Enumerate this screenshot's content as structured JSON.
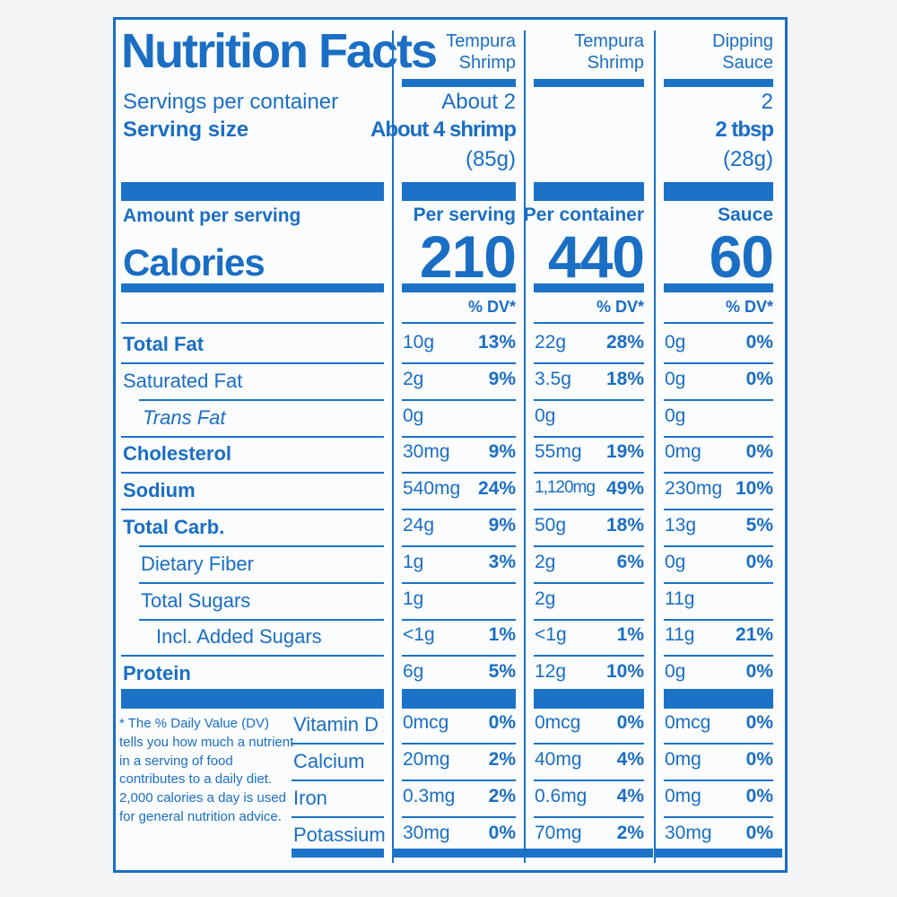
{
  "header": {
    "title": "Nutrition Facts",
    "servings_label": "Servings per container",
    "serving_size_label": "Serving size",
    "amount_label": "Amount per serving",
    "calories_label": "Calories"
  },
  "columns": [
    {
      "heading": "Tempura Shrimp",
      "servings": "About 2",
      "serving_size": "About 4 shrimp",
      "serving_grams": "(85g)",
      "amount_label": "Per serving",
      "calories": 210,
      "dv_label": "% DV*"
    },
    {
      "heading": "Tempura Shrimp",
      "amount_label": "Per container",
      "calories": 440,
      "dv_label": "% DV*"
    },
    {
      "heading": "Dipping Sauce",
      "servings": "2",
      "serving_size": "2 tbsp",
      "serving_grams": "(28g)",
      "amount_label": "Sauce",
      "calories": 60,
      "dv_label": "% DV*"
    }
  ],
  "nutrients": [
    {
      "name": "Total Fat",
      "values": [
        {
          "amount": "10g",
          "dv": "13%"
        },
        {
          "amount": "22g",
          "dv": "28%"
        },
        {
          "amount": "0g",
          "dv": "0%"
        }
      ]
    },
    {
      "name": "Saturated Fat",
      "values": [
        {
          "amount": "2g",
          "dv": "9%"
        },
        {
          "amount": "3.5g",
          "dv": "18%"
        },
        {
          "amount": "0g",
          "dv": "0%"
        }
      ]
    },
    {
      "name": "Trans Fat",
      "values": [
        {
          "amount": "0g"
        },
        {
          "amount": "0g"
        },
        {
          "amount": "0g"
        }
      ]
    },
    {
      "name": "Cholesterol",
      "values": [
        {
          "amount": "30mg",
          "dv": "9%"
        },
        {
          "amount": "55mg",
          "dv": "19%"
        },
        {
          "amount": "0mg",
          "dv": "0%"
        }
      ]
    },
    {
      "name": "Sodium",
      "values": [
        {
          "amount": "540mg",
          "dv": "24%"
        },
        {
          "amount": "1,120mg",
          "dv": "49%"
        },
        {
          "amount": "230mg",
          "dv": "10%"
        }
      ]
    },
    {
      "name": "Total Carb.",
      "values": [
        {
          "amount": "24g",
          "dv": "9%"
        },
        {
          "amount": "50g",
          "dv": "18%"
        },
        {
          "amount": "13g",
          "dv": "5%"
        }
      ]
    },
    {
      "name": "Dietary Fiber",
      "values": [
        {
          "amount": "1g",
          "dv": "3%"
        },
        {
          "amount": "2g",
          "dv": "6%"
        },
        {
          "amount": "0g",
          "dv": "0%"
        }
      ]
    },
    {
      "name": "Total Sugars",
      "values": [
        {
          "amount": "1g"
        },
        {
          "amount": "2g"
        },
        {
          "amount": "11g"
        }
      ]
    },
    {
      "name": "Incl. Added Sugars",
      "values": [
        {
          "amount": "<1g",
          "dv": "1%"
        },
        {
          "amount": "<1g",
          "dv": "1%"
        },
        {
          "amount": "11g",
          "dv": "21%"
        }
      ]
    },
    {
      "name": "Protein",
      "values": [
        {
          "amount": "6g",
          "dv": "5%"
        },
        {
          "amount": "12g",
          "dv": "10%"
        },
        {
          "amount": "0g",
          "dv": "0%"
        }
      ]
    }
  ],
  "vitamins": [
    {
      "name": "Vitamin D",
      "values": [
        {
          "amount": "0mcg",
          "dv": "0%"
        },
        {
          "amount": "0mcg",
          "dv": "0%"
        },
        {
          "amount": "0mcg",
          "dv": "0%"
        }
      ]
    },
    {
      "name": "Calcium",
      "values": [
        {
          "amount": "20mg",
          "dv": "2%"
        },
        {
          "amount": "40mg",
          "dv": "4%"
        },
        {
          "amount": "0mg",
          "dv": "0%"
        }
      ]
    },
    {
      "name": "Iron",
      "values": [
        {
          "amount": "0.3mg",
          "dv": "2%"
        },
        {
          "amount": "0.6mg",
          "dv": "4%"
        },
        {
          "amount": "0mg",
          "dv": "0%"
        }
      ]
    },
    {
      "name": "Potassium",
      "values": [
        {
          "amount": "30mg",
          "dv": "0%"
        },
        {
          "amount": "70mg",
          "dv": "2%"
        },
        {
          "amount": "30mg",
          "dv": "0%"
        }
      ]
    }
  ],
  "footnote": "* The % Daily Value (DV) tells you how much a nutrient in a serving of food contributes to a daily diet. 2,000 calories a day is used for general nutrition advice."
}
